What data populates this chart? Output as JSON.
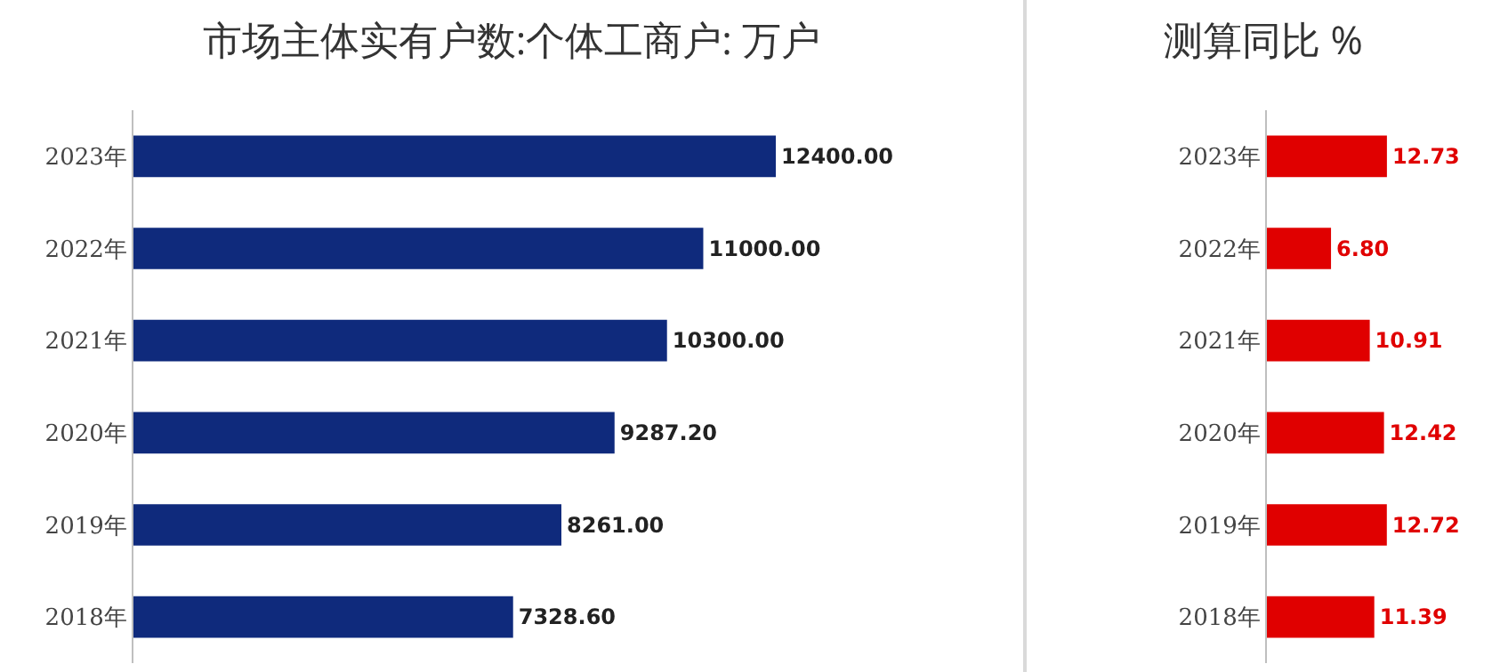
{
  "chart_data": [
    {
      "type": "bar",
      "orientation": "horizontal",
      "title": "市场主体实有户数:个体工商户: 万户",
      "categories": [
        "2023年",
        "2022年",
        "2021年",
        "2020年",
        "2019年",
        "2018年"
      ],
      "values": [
        12400,
        11000,
        10300,
        9287.2,
        8261,
        7328.6
      ],
      "value_labels": [
        "12400.00",
        "11000.00",
        "10300.00",
        "9287.20",
        "8261.00",
        "7328.60"
      ],
      "color": "#0f2a7c",
      "tick_labels": "y",
      "grid": false
    },
    {
      "type": "bar",
      "orientation": "horizontal",
      "title": "测算同比 %",
      "categories": [
        "2023年",
        "2022年",
        "2021年",
        "2020年",
        "2019年",
        "2018年"
      ],
      "values": [
        12.73,
        6.8,
        10.91,
        12.42,
        12.72,
        11.39
      ],
      "value_labels": [
        "12.73",
        "6.80",
        "10.91",
        "12.42",
        "12.72",
        "11.39"
      ],
      "color": "#e00000",
      "tick_labels": "y",
      "grid": false
    }
  ]
}
